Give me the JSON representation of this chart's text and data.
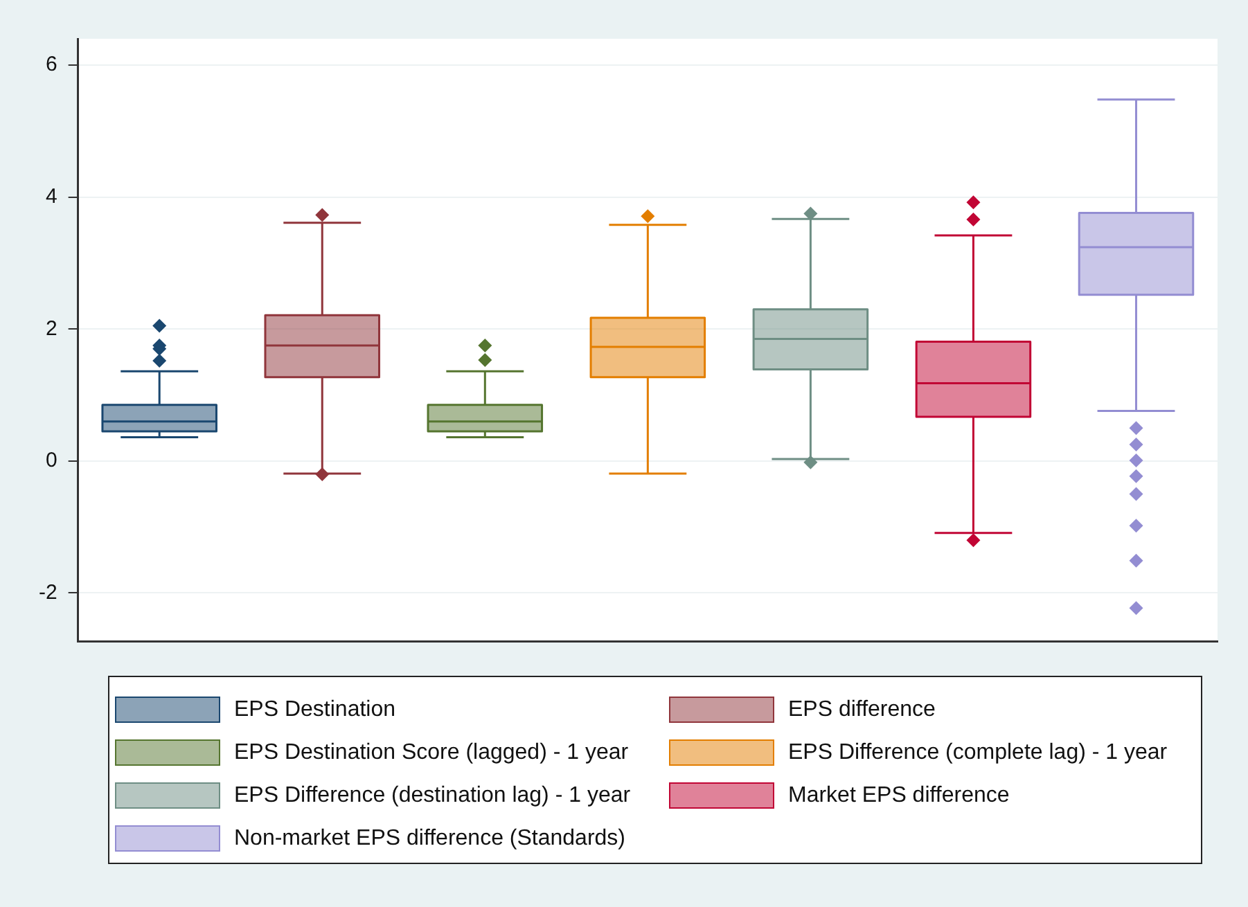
{
  "chart_data": {
    "type": "box",
    "categories": [
      null
    ],
    "ylim": [
      -2.73,
      6.4
    ],
    "yticks": [
      -2,
      0,
      2,
      4,
      6
    ],
    "grid": "y",
    "legend": "bottom",
    "marker": "diamond",
    "tick_labels": "y",
    "series": [
      {
        "name": "EPS Destination",
        "color": "#1a476f",
        "boxes": [
          {
            "low": 0.36,
            "q1": 0.45,
            "median": 0.6,
            "q3": 0.85,
            "high": 1.36,
            "outliers": [
              2.05,
              1.75,
              1.7,
              1.52
            ]
          }
        ]
      },
      {
        "name": "EPS difference",
        "color": "#90353b",
        "boxes": [
          {
            "low": -0.19,
            "q1": 1.27,
            "median": 1.75,
            "q3": 2.21,
            "high": 3.61,
            "outliers": [
              3.73,
              -0.2
            ]
          }
        ]
      },
      {
        "name": "EPS Destination Score (lagged) - 1 year",
        "color": "#55752f",
        "boxes": [
          {
            "low": 0.36,
            "q1": 0.45,
            "median": 0.6,
            "q3": 0.85,
            "high": 1.36,
            "outliers": [
              1.75,
              1.53
            ]
          }
        ]
      },
      {
        "name": "EPS Difference (complete lag) - 1 year",
        "color": "#e37e00",
        "boxes": [
          {
            "low": -0.19,
            "q1": 1.27,
            "median": 1.73,
            "q3": 2.17,
            "high": 3.58,
            "outliers": [
              3.71
            ]
          }
        ]
      },
      {
        "name": "EPS Difference (destination lag)  - 1 year",
        "color": "#6e8e84",
        "boxes": [
          {
            "low": 0.03,
            "q1": 1.39,
            "median": 1.85,
            "q3": 2.3,
            "high": 3.67,
            "outliers": [
              3.75,
              -0.02
            ]
          }
        ]
      },
      {
        "name": "Market EPS difference",
        "color": "#c10534",
        "boxes": [
          {
            "low": -1.09,
            "q1": 0.67,
            "median": 1.18,
            "q3": 1.81,
            "high": 3.42,
            "outliers": [
              3.92,
              3.66,
              -1.2
            ]
          }
        ]
      },
      {
        "name": "Non-market EPS difference (Standards)",
        "color": "#938dd2",
        "boxes": [
          {
            "low": 0.76,
            "q1": 2.52,
            "median": 3.24,
            "q3": 3.76,
            "high": 5.48,
            "outliers": [
              0.5,
              0.25,
              0.01,
              -0.23,
              -0.5,
              -0.98,
              -1.51,
              -2.23
            ]
          }
        ]
      }
    ]
  }
}
